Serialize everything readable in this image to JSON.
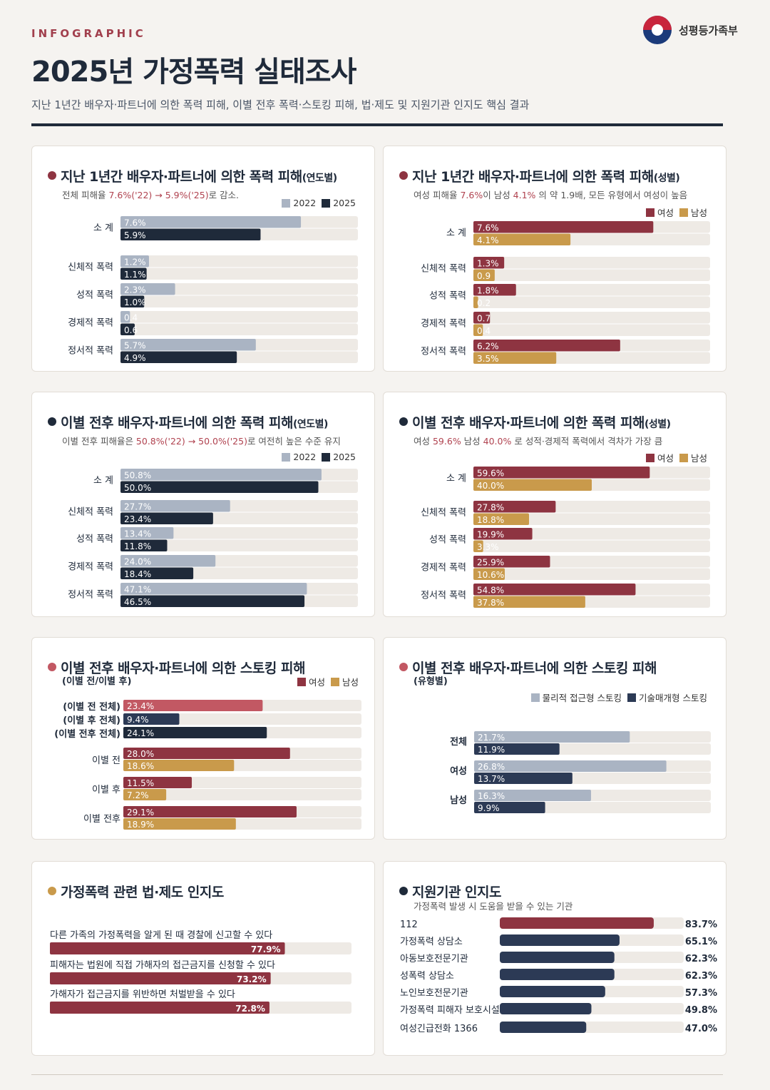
{
  "header": {
    "eyebrow": "INFOGRAPHIC",
    "title": "2025년 가정폭력 실태조사",
    "subtitle": "지난 1년간 배우자·파트너에 의한 폭력 피해, 이별 전후 폭력·스토킹 피해, 법·제도 및 지원기관 인지도 핵심 결과",
    "logo_text": "성평등가족부"
  },
  "colors": {
    "y2022": "#aab4c3",
    "y2025": "#1f2a3a",
    "female": "#8e3441",
    "male": "#c99a4b",
    "physical": "#aab4c3",
    "tech": "#2c3a55",
    "stalk_total": "#c25863",
    "track": "#eeeae5",
    "accent_red": "#b0424f",
    "gold": "#c99a4b"
  },
  "panels": {
    "p1": {
      "title": "지난 1년간 배우자·파트너에 의한 폭력 피해",
      "title_suffix": "(연도별)",
      "sub_a": "전체 피해율 ",
      "sub_hl": "7.6%('22) → 5.9%('25)",
      "sub_b": "로 감소.",
      "legend": [
        "2022",
        "2025"
      ]
    },
    "p2": {
      "title": "지난 1년간 배우자·파트너에 의한 폭력 피해",
      "title_suffix": "(성별)",
      "sub_a": "여성 피해율 ",
      "sub_hl1": "7.6%",
      "sub_b": "이 남성 ",
      "sub_hl2": "4.1%",
      "sub_c": " 의 약 1.9배, 모든 유형에서 여성이 높음",
      "legend": [
        "여성",
        "남성"
      ]
    },
    "p3": {
      "title": "이별 전후 배우자·파트너에 의한 폭력 피해",
      "title_suffix": "(연도별)",
      "sub_a": "이별 전후 피해율은 ",
      "sub_hl": "50.8%('22) → 50.0%('25)",
      "sub_b": "로 여전히 높은 수준 유지",
      "legend": [
        "2022",
        "2025"
      ]
    },
    "p4": {
      "title": "이별 전후 배우자·파트너에 의한 폭력 피해",
      "title_suffix": "(성별)",
      "sub_a": "여성 ",
      "sub_hl1": "59.6%",
      "sub_b": " 남성 ",
      "sub_hl2": "40.0%",
      "sub_c": " 로 성적·경제적 폭력에서 격차가 가장 큼",
      "legend": [
        "여성",
        "남성"
      ]
    },
    "p5": {
      "title": "이별 전후 배우자·파트너에 의한 스토킹 피해",
      "subtitle": "(이별 전/이별 후)",
      "legend": [
        "여성",
        "남성"
      ]
    },
    "p6": {
      "title": "이별 전후 배우자·파트너에 의한 스토킹 피해",
      "subtitle": "(유형별)",
      "legend": [
        "물리적 접근형 스토킹",
        "기술매개형 스토킹"
      ]
    },
    "p7": {
      "title": "가정폭력 관련 법·제도 인지도"
    },
    "p8": {
      "title": "지원기관 인지도",
      "subtitle": "가정폭력 발생 시 도움을 받을 수 있는 기관"
    }
  },
  "chart_data": [
    {
      "id": "p1",
      "type": "bar",
      "orientation": "horizontal",
      "categories": [
        "소 계",
        "신체적 폭력",
        "성적 폭력",
        "경제적 폭력",
        "정서적 폭력"
      ],
      "series": [
        {
          "name": "2022",
          "values": [
            7.6,
            1.2,
            2.3,
            0.4,
            5.7
          ],
          "labels": [
            "7.6%",
            "1.2%",
            "2.3%",
            "0.4",
            "5.7%"
          ]
        },
        {
          "name": "2025",
          "values": [
            5.9,
            1.1,
            1.0,
            0.6,
            4.9
          ],
          "labels": [
            "5.9%",
            "1.1%",
            "1.0%",
            "0.6",
            "4.9%"
          ]
        }
      ],
      "xlim": [
        0,
        10
      ]
    },
    {
      "id": "p2",
      "type": "bar",
      "orientation": "horizontal",
      "categories": [
        "소 계",
        "신체적 폭력",
        "성적 폭력",
        "경제적 폭력",
        "정서적 폭력"
      ],
      "series": [
        {
          "name": "여성",
          "values": [
            7.6,
            1.3,
            1.8,
            0.7,
            6.2
          ],
          "labels": [
            "7.6%",
            "1.3%",
            "1.8%",
            "0.7",
            "6.2%"
          ]
        },
        {
          "name": "남성",
          "values": [
            4.1,
            0.9,
            0.2,
            0.4,
            3.5
          ],
          "labels": [
            "4.1%",
            "0.9",
            "0.2",
            "0.4",
            "3.5%"
          ]
        }
      ],
      "xlim": [
        0,
        10
      ]
    },
    {
      "id": "p3",
      "type": "bar",
      "orientation": "horizontal",
      "categories": [
        "소 계",
        "신체적 폭력",
        "성적 폭력",
        "경제적 폭력",
        "정서적 폭력"
      ],
      "series": [
        {
          "name": "2022",
          "values": [
            50.8,
            27.7,
            13.4,
            24.0,
            47.1
          ],
          "labels": [
            "50.8%",
            "27.7%",
            "13.4%",
            "24.0%",
            "47.1%"
          ]
        },
        {
          "name": "2025",
          "values": [
            50.0,
            23.4,
            11.8,
            18.4,
            46.5
          ],
          "labels": [
            "50.0%",
            "23.4%",
            "11.8%",
            "18.4%",
            "46.5%"
          ]
        }
      ],
      "xlim": [
        0,
        60
      ]
    },
    {
      "id": "p4",
      "type": "bar",
      "orientation": "horizontal",
      "categories": [
        "소 계",
        "신체적 폭력",
        "성적 폭력",
        "경제적 폭력",
        "정서적 폭력"
      ],
      "series": [
        {
          "name": "여성",
          "values": [
            59.6,
            27.8,
            19.9,
            25.9,
            54.8
          ],
          "labels": [
            "59.6%",
            "27.8%",
            "19.9%",
            "25.9%",
            "54.8%"
          ]
        },
        {
          "name": "남성",
          "values": [
            40.0,
            18.8,
            3.3,
            10.6,
            37.8
          ],
          "labels": [
            "40.0%",
            "18.8%",
            "3.3%",
            "10.6%",
            "37.8%"
          ]
        }
      ],
      "xlim": [
        0,
        80
      ]
    },
    {
      "id": "p5a",
      "type": "bar",
      "orientation": "horizontal",
      "categories": [
        "(이별 전 전체)",
        "(이별 후 전체)",
        "(이별 전후 전체)"
      ],
      "values": [
        23.4,
        9.4,
        24.1
      ],
      "labels": [
        "23.4%",
        "9.4%",
        "24.1%"
      ],
      "xlim": [
        0,
        40
      ]
    },
    {
      "id": "p5b",
      "type": "bar",
      "orientation": "horizontal",
      "categories": [
        "이별 전",
        "이별 후",
        "이별 전후"
      ],
      "series": [
        {
          "name": "여성",
          "values": [
            28.0,
            11.5,
            29.1
          ],
          "labels": [
            "28.0%",
            "11.5%",
            "29.1%"
          ]
        },
        {
          "name": "남성",
          "values": [
            18.6,
            7.2,
            18.9
          ],
          "labels": [
            "18.6%",
            "7.2%",
            "18.9%"
          ]
        }
      ],
      "xlim": [
        0,
        40
      ]
    },
    {
      "id": "p6",
      "type": "bar",
      "orientation": "horizontal",
      "categories": [
        "전체",
        "여성",
        "남성"
      ],
      "series": [
        {
          "name": "물리적 접근형 스토킹",
          "values": [
            21.7,
            26.8,
            16.3
          ],
          "labels": [
            "21.7%",
            "26.8%",
            "16.3%"
          ]
        },
        {
          "name": "기술매개형 스토킹",
          "values": [
            11.9,
            13.7,
            9.9
          ],
          "labels": [
            "11.9%",
            "13.7%",
            "9.9%"
          ]
        }
      ],
      "xlim": [
        0,
        33
      ]
    },
    {
      "id": "p7",
      "type": "bar",
      "orientation": "horizontal",
      "categories": [
        "다른 가족의 가정폭력을 알게 된 때 경찰에 신고할 수 있다",
        "피해자는 법원에 직접 가해자의 접근금지를 신청할 수 있다",
        "가해자가 접근금지를 위반하면 처벌받을 수 있다"
      ],
      "values": [
        77.9,
        73.2,
        72.8
      ],
      "labels": [
        "77.9%",
        "73.2%",
        "72.8%"
      ],
      "xlim": [
        0,
        100
      ]
    },
    {
      "id": "p8",
      "type": "bar",
      "orientation": "horizontal",
      "categories": [
        "112",
        "가정폭력 상담소",
        "아동보호전문기관",
        "성폭력 상담소",
        "노인보호전문기관",
        "가정폭력 피해자 보호시설",
        "여성긴급전화 1366"
      ],
      "values": [
        83.7,
        65.1,
        62.3,
        62.3,
        57.3,
        49.8,
        47.0
      ],
      "labels": [
        "83.7%",
        "65.1%",
        "62.3%",
        "62.3%",
        "57.3%",
        "49.8%",
        "47.0%"
      ],
      "xlim": [
        0,
        100
      ]
    }
  ]
}
